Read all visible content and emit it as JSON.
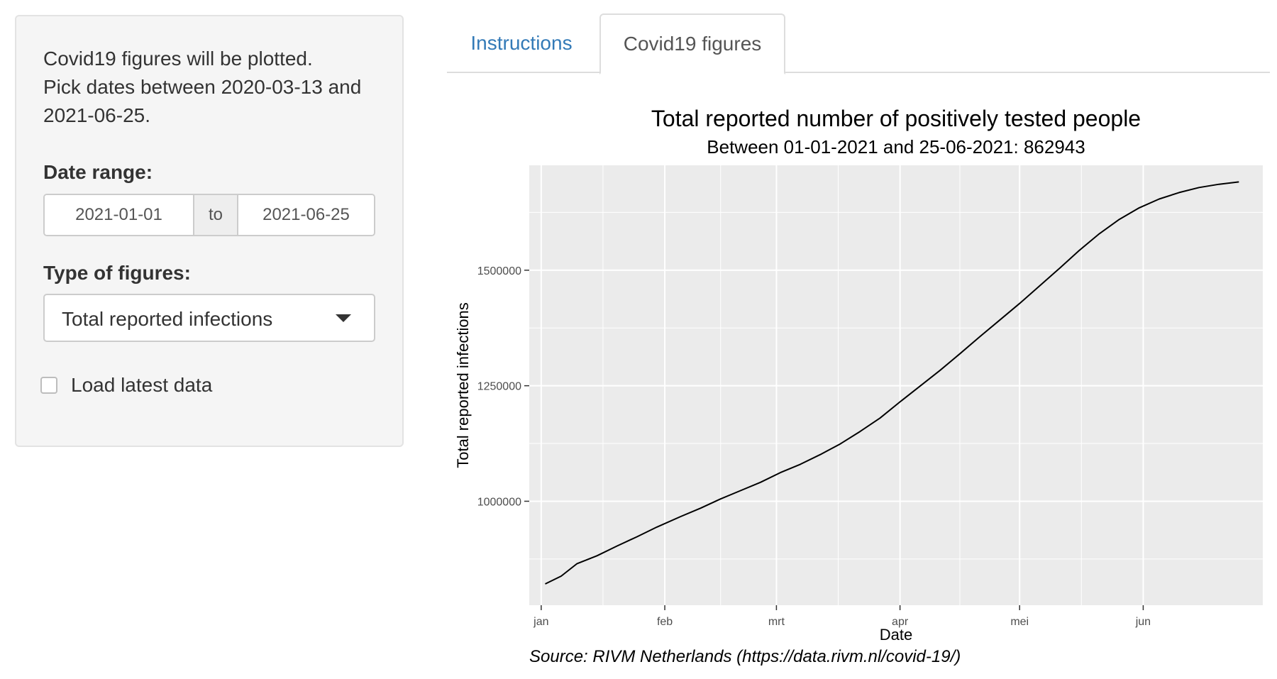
{
  "sidebar": {
    "intro_lines": [
      "Covid19 figures will be plotted.",
      "Pick dates between 2020-03-13 and",
      "2021-06-25."
    ],
    "date_range_label": "Date range:",
    "date_from": "2021-01-01",
    "date_separator": "to",
    "date_to": "2021-06-25",
    "figure_type_label": "Type of figures:",
    "figure_type_selected": "Total reported infections",
    "load_latest_label": "Load latest data",
    "load_latest_checked": false
  },
  "tabs": [
    {
      "label": "Instructions",
      "active": false
    },
    {
      "label": "Covid19 figures",
      "active": true
    }
  ],
  "chart_data": {
    "type": "line",
    "title": "Total reported number of positively tested people",
    "subtitle": "Between 01-01-2021 and 25-06-2021: 862943",
    "xlabel": "Date",
    "ylabel": "Total reported infections",
    "caption": "Source: RIVM Netherlands (https://data.rivm.nl/covid-19/)",
    "x_ticks": [
      {
        "label": "jan",
        "date": "2021-01-01"
      },
      {
        "label": "feb",
        "date": "2021-02-01"
      },
      {
        "label": "mrt",
        "date": "2021-03-01"
      },
      {
        "label": "apr",
        "date": "2021-04-01"
      },
      {
        "label": "mei",
        "date": "2021-05-01"
      },
      {
        "label": "jun",
        "date": "2021-06-01"
      }
    ],
    "y_ticks": [
      1000000,
      1250000,
      1500000
    ],
    "y_tick_labels": [
      "1000000",
      "1250000",
      "1500000"
    ],
    "xlim": [
      "2020-12-29",
      "2021-07-01"
    ],
    "ylim": [
      775000,
      1727000
    ],
    "grid": true,
    "background": "#ebebeb",
    "line_color": "#000000",
    "series": [
      {
        "x": [
          "2021-01-02",
          "2021-01-06",
          "2021-01-10",
          "2021-01-15",
          "2021-01-20",
          "2021-01-25",
          "2021-01-30",
          "2021-02-05",
          "2021-02-10",
          "2021-02-15",
          "2021-02-20",
          "2021-02-25",
          "2021-03-02",
          "2021-03-07",
          "2021-03-12",
          "2021-03-17",
          "2021-03-22",
          "2021-03-27",
          "2021-04-01",
          "2021-04-06",
          "2021-04-11",
          "2021-04-16",
          "2021-04-21",
          "2021-04-26",
          "2021-05-01",
          "2021-05-06",
          "2021-05-11",
          "2021-05-16",
          "2021-05-21",
          "2021-05-26",
          "2021-05-31",
          "2021-06-05",
          "2021-06-10",
          "2021-06-15",
          "2021-06-20",
          "2021-06-25"
        ],
        "values": [
          821000,
          838000,
          865000,
          882000,
          903000,
          923000,
          944000,
          967000,
          985000,
          1005000,
          1023000,
          1041000,
          1062000,
          1080000,
          1101000,
          1124000,
          1151000,
          1180000,
          1215000,
          1249000,
          1283000,
          1319000,
          1356000,
          1392000,
          1428000,
          1466000,
          1504000,
          1543000,
          1579000,
          1610000,
          1635000,
          1654000,
          1668000,
          1679000,
          1686000,
          1691000
        ]
      }
    ]
  }
}
